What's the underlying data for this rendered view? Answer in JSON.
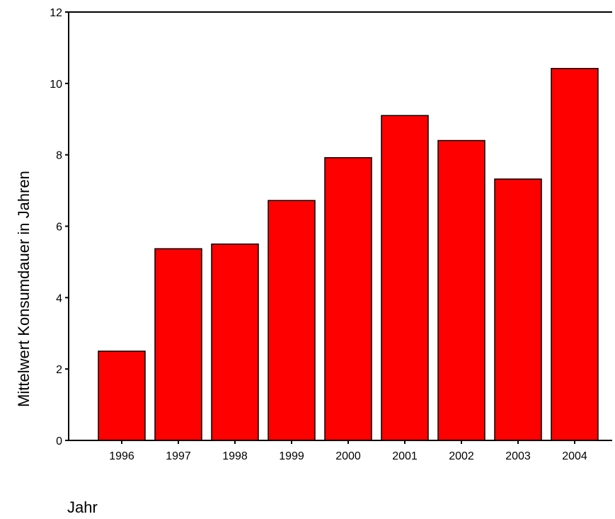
{
  "chart_data": {
    "type": "bar",
    "categories": [
      "1996",
      "1997",
      "1998",
      "1999",
      "2000",
      "2001",
      "2002",
      "2003",
      "2004"
    ],
    "values": [
      2.5,
      5.37,
      5.5,
      6.72,
      7.92,
      9.1,
      8.4,
      7.32,
      10.42
    ],
    "xlabel": "Jahr",
    "ylabel": "Mittelwert Konsumdauer in Jahren",
    "ylim": [
      0,
      12
    ],
    "yticks": [
      0,
      2,
      4,
      6,
      8,
      10,
      12
    ],
    "grid": false,
    "bar_color": "#ff0000",
    "bar_outline_color": "#000000",
    "axis_color": "#000000"
  }
}
